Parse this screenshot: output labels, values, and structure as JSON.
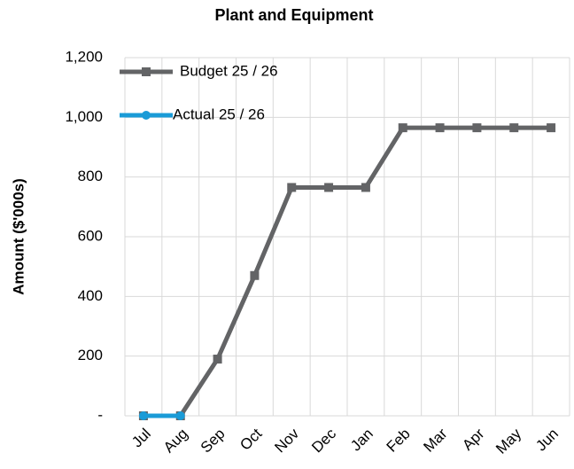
{
  "chart_data": {
    "type": "line",
    "title": "Plant and Equipment",
    "y_label": "Amount ($'000s)",
    "categories": [
      "Jul",
      "Aug",
      "Sep",
      "Oct",
      "Nov",
      "Dec",
      "Jan",
      "Feb",
      "Mar",
      "Apr",
      "May",
      "Jun"
    ],
    "series": [
      {
        "name": "Budget 25 / 26",
        "color": "#636466",
        "marker": "square",
        "values": [
          0,
          0,
          190,
          470,
          765,
          765,
          765,
          965,
          965,
          965,
          965,
          965
        ]
      },
      {
        "name": "Actual 25 / 26",
        "color": "#1a9bd7",
        "marker": "circle",
        "values": [
          0,
          0,
          null,
          null,
          null,
          null,
          null,
          null,
          null,
          null,
          null,
          null
        ]
      }
    ],
    "ylim": [
      0,
      1200
    ],
    "yticks": [
      {
        "value": 0,
        "label": "-"
      },
      200,
      400,
      600,
      800,
      {
        "value": 1000,
        "label": "1,000"
      },
      {
        "value": 1200,
        "label": "1,200"
      }
    ],
    "grid": true,
    "legend": "top-left"
  }
}
